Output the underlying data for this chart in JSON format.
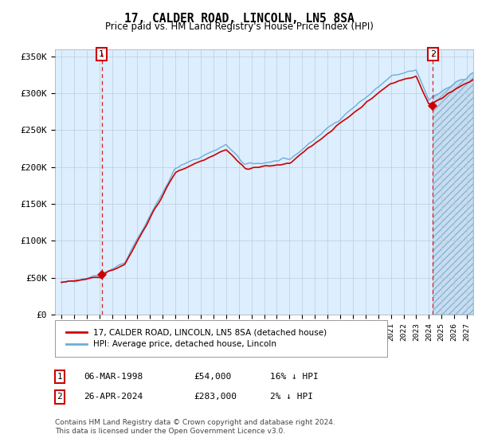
{
  "title": "17, CALDER ROAD, LINCOLN, LN5 8SA",
  "subtitle": "Price paid vs. HM Land Registry's House Price Index (HPI)",
  "ylabel_ticks": [
    "£0",
    "£50K",
    "£100K",
    "£150K",
    "£200K",
    "£250K",
    "£300K",
    "£350K"
  ],
  "ytick_values": [
    0,
    50000,
    100000,
    150000,
    200000,
    250000,
    300000,
    350000
  ],
  "ylim": [
    0,
    360000
  ],
  "xlim_start": 1994.5,
  "xlim_end": 2027.5,
  "purchase1_date": 1998.18,
  "purchase1_price": 54000,
  "purchase2_date": 2024.32,
  "purchase2_price": 283000,
  "hpi_color": "#6baed6",
  "price_color": "#cc0000",
  "plot_bg_color": "#ddeeff",
  "hatch_fill_color": "#c8ddf0",
  "legend_label1": "17, CALDER ROAD, LINCOLN, LN5 8SA (detached house)",
  "legend_label2": "HPI: Average price, detached house, Lincoln",
  "table_row1": [
    "1",
    "06-MAR-1998",
    "£54,000",
    "16% ↓ HPI"
  ],
  "table_row2": [
    "2",
    "26-APR-2024",
    "£283,000",
    "2% ↓ HPI"
  ],
  "footnote": "Contains HM Land Registry data © Crown copyright and database right 2024.\nThis data is licensed under the Open Government Licence v3.0.",
  "background_color": "#ffffff",
  "grid_color": "#bbccdd",
  "title_fontsize": 11,
  "subtitle_fontsize": 9,
  "tick_fontsize": 8
}
